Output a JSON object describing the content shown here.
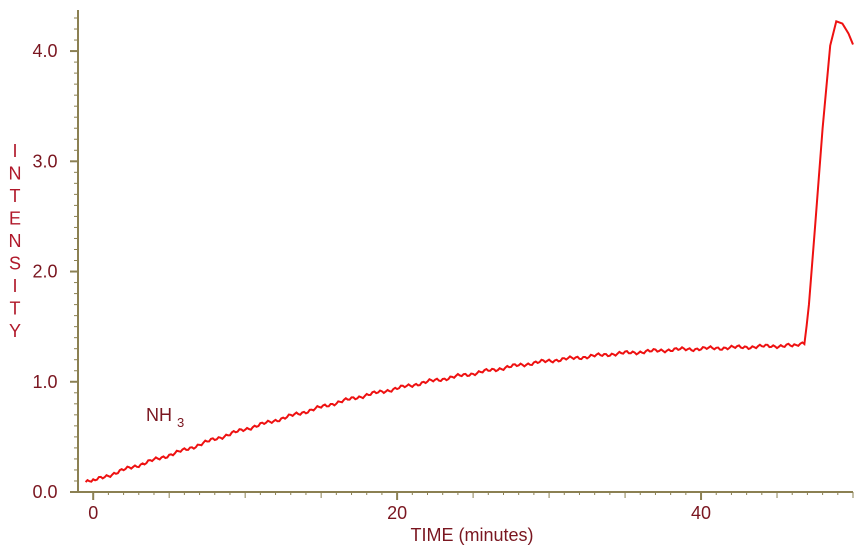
{
  "chart_data": {
    "type": "line",
    "title": "",
    "xlabel": "TIME (minutes)",
    "ylabel": "INTENSITY",
    "xlim": [
      -1,
      50
    ],
    "ylim": [
      0.0,
      4.3
    ],
    "x_ticks": [
      "0",
      "20",
      "40"
    ],
    "y_ticks": [
      "0.0",
      "1.0",
      "2.0",
      "3.0",
      "4.0"
    ],
    "grid": false,
    "annotation": {
      "text": "NH",
      "subscript": "3"
    },
    "series": [
      {
        "color": "#ee1111",
        "points": [
          [
            -0.5,
            0.09
          ],
          [
            0,
            0.1
          ],
          [
            2,
            0.2
          ],
          [
            4,
            0.29
          ],
          [
            6,
            0.38
          ],
          [
            8,
            0.48
          ],
          [
            10,
            0.57
          ],
          [
            12,
            0.65
          ],
          [
            14,
            0.73
          ],
          [
            16,
            0.81
          ],
          [
            18,
            0.88
          ],
          [
            20,
            0.94
          ],
          [
            22,
            1.0
          ],
          [
            24,
            1.05
          ],
          [
            26,
            1.1
          ],
          [
            28,
            1.15
          ],
          [
            30,
            1.19
          ],
          [
            32,
            1.22
          ],
          [
            34,
            1.25
          ],
          [
            36,
            1.27
          ],
          [
            38,
            1.29
          ],
          [
            40,
            1.3
          ],
          [
            42,
            1.31
          ],
          [
            44,
            1.32
          ],
          [
            46,
            1.33
          ],
          [
            46.8,
            1.34
          ],
          [
            47.1,
            1.7
          ],
          [
            47.5,
            2.4
          ],
          [
            48.0,
            3.3
          ],
          [
            48.5,
            4.05
          ],
          [
            48.9,
            4.27
          ],
          [
            49.3,
            4.25
          ],
          [
            49.7,
            4.16
          ],
          [
            50.0,
            4.06
          ]
        ]
      }
    ],
    "colors": {
      "line": "#ee1111",
      "axis": "#8b8052",
      "tick_text": "#7a1620",
      "ylabel": "#b0182a"
    }
  }
}
